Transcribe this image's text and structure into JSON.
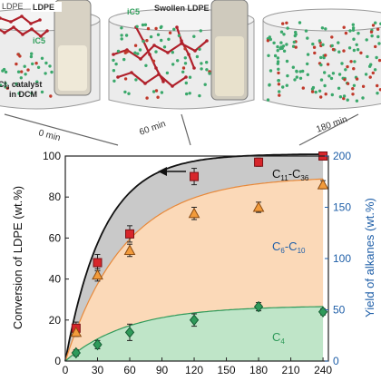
{
  "panels": {
    "labels": {
      "ldpe": "LDPE",
      "ic5_left": "iC5",
      "ic5_mid": "iC5",
      "swollen": "Swollen LDPE",
      "catalyst_line1": "Cl",
      "catalyst_sub": "3",
      "catalyst_line1b": " catalyst",
      "catalyst_line2": "in DCM"
    },
    "times": [
      "0 min",
      "60 min",
      "180 min"
    ],
    "colors": {
      "chain": "#b0202a",
      "bead_green": "#3aa86b",
      "bead_red": "#c0392b",
      "cylinder": "#e9e9e9",
      "cylinder_edge": "#9a9a9a"
    }
  },
  "chart_data": {
    "type": "scatter",
    "xlabel": "",
    "ylabel_left": "Conversion of LDPE (wt.%)",
    "ylabel_right": "Yield of alkanes  (wt.%)",
    "x_ticks": [
      0,
      30,
      60,
      90,
      120,
      150,
      180,
      210,
      240
    ],
    "y_left_ticks": [
      0,
      20,
      40,
      60,
      80,
      100
    ],
    "y_right_ticks": [
      0,
      50,
      100,
      150,
      200
    ],
    "xlim": [
      0,
      245
    ],
    "ylim_left": [
      0,
      100
    ],
    "ylim_right": [
      0,
      200
    ],
    "right_axis_color": "#1f5fa8",
    "series": [
      {
        "name": "C11-C36",
        "label_main": "C",
        "label_sub1": "11",
        "label_dash": "-C",
        "label_sub2": "36",
        "axis": "left",
        "marker": "square",
        "color": "#d7262b",
        "x": [
          10,
          30,
          60,
          120,
          180,
          240
        ],
        "y": [
          16,
          48,
          62,
          90,
          97,
          100
        ],
        "err": [
          3,
          4,
          4,
          4,
          2,
          1
        ],
        "fill": "#c9c9c9"
      },
      {
        "name": "C6-C10",
        "label_main": "C",
        "label_sub1": "6",
        "label_dash": "-C",
        "label_sub2": "10",
        "axis": "right",
        "marker": "triangle",
        "color": "#f29b3b",
        "x": [
          10,
          30,
          60,
          120,
          180,
          240
        ],
        "y": [
          28,
          84,
          108,
          144,
          150,
          172
        ],
        "err": [
          4,
          6,
          6,
          6,
          5,
          4
        ],
        "fill": "#fbd9b8"
      },
      {
        "name": "C4",
        "label_main": "C",
        "label_sub1": "4",
        "axis": "right",
        "marker": "diamond",
        "color": "#2f9a5a",
        "x": [
          10,
          30,
          60,
          120,
          180,
          240
        ],
        "y": [
          8,
          16,
          28,
          40,
          53,
          48
        ],
        "err": [
          3,
          4,
          8,
          6,
          4,
          3
        ],
        "fill": "#bfe5c8"
      }
    ],
    "fit_curves": {
      "black": {
        "a": 101,
        "k": 0.028
      },
      "orange": {
        "a": 180,
        "k": 0.018
      },
      "green": {
        "a": 54,
        "k": 0.017
      }
    }
  }
}
